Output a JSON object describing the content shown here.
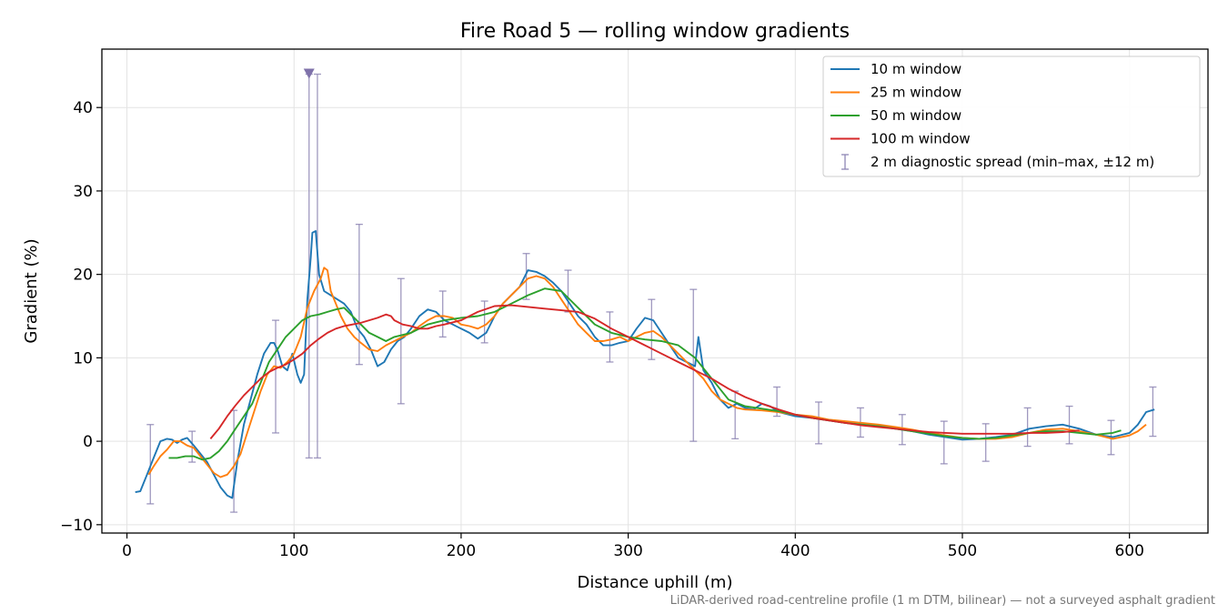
{
  "chart_data": {
    "type": "line",
    "title": "Fire Road 5 — rolling window gradients",
    "xlabel": "Distance uphill (m)",
    "ylabel": "Gradient (%)",
    "footnote": "LiDAR-derived road-centreline profile (1 m DTM, bilinear) — not a surveyed asphalt gradient",
    "xlim": [
      -15,
      647
    ],
    "ylim": [
      -11,
      47
    ],
    "xticks": [
      0,
      100,
      200,
      300,
      400,
      500,
      600
    ],
    "yticks": [
      -10,
      0,
      10,
      20,
      30,
      40
    ],
    "grid": true,
    "legend_position": "top-right",
    "series": [
      {
        "name": "10 m window",
        "color": "#1f77b4",
        "x": [
          5,
          8,
          12,
          16,
          20,
          24,
          27,
          30,
          33,
          36,
          40,
          44,
          48,
          52,
          56,
          60,
          63,
          66,
          70,
          74,
          78,
          82,
          86,
          88,
          90,
          93,
          96,
          99,
          102,
          104,
          106,
          108,
          110,
          111,
          113,
          115,
          118,
          122,
          126,
          130,
          134,
          138,
          142,
          146,
          150,
          154,
          158,
          162,
          166,
          170,
          175,
          180,
          185,
          190,
          195,
          200,
          205,
          210,
          215,
          220,
          225,
          230,
          235,
          240,
          245,
          250,
          255,
          260,
          265,
          270,
          275,
          280,
          285,
          290,
          295,
          300,
          305,
          310,
          315,
          320,
          325,
          330,
          335,
          340,
          342,
          345,
          350,
          355,
          360,
          365,
          370,
          375,
          380,
          385,
          390,
          400,
          410,
          420,
          430,
          440,
          450,
          460,
          470,
          480,
          490,
          500,
          510,
          520,
          530,
          540,
          550,
          560,
          570,
          580,
          590,
          600,
          605,
          610,
          615
        ],
        "y": [
          -6.1,
          -6.0,
          -4.0,
          -2.0,
          0.0,
          0.3,
          0.2,
          -0.2,
          0.2,
          0.4,
          -0.5,
          -1.5,
          -2.5,
          -4.0,
          -5.5,
          -6.5,
          -6.8,
          -2.5,
          2.0,
          5.0,
          8.0,
          10.5,
          11.8,
          11.8,
          11.0,
          9.0,
          8.5,
          10.5,
          8.0,
          7.0,
          8.0,
          17.0,
          22.0,
          25.0,
          25.2,
          20.0,
          18.0,
          17.5,
          17.0,
          16.5,
          15.5,
          13.5,
          12.5,
          11.0,
          9.0,
          9.5,
          11.0,
          12.0,
          12.5,
          13.5,
          15.0,
          15.8,
          15.5,
          14.5,
          14.0,
          13.5,
          13.0,
          12.3,
          13.0,
          15.0,
          16.5,
          17.5,
          18.5,
          20.5,
          20.3,
          19.8,
          19.0,
          18.0,
          16.5,
          15.0,
          14.0,
          12.5,
          11.5,
          11.5,
          11.8,
          12.0,
          13.5,
          14.8,
          14.5,
          13.0,
          11.5,
          10.0,
          9.5,
          9.0,
          12.5,
          8.5,
          7.0,
          5.0,
          4.0,
          4.5,
          4.0,
          3.8,
          4.5,
          4.2,
          3.5,
          3.0,
          2.8,
          2.5,
          2.2,
          2.0,
          1.8,
          1.5,
          1.2,
          0.8,
          0.5,
          0.2,
          0.3,
          0.5,
          0.8,
          1.5,
          1.8,
          2.0,
          1.5,
          0.8,
          0.5,
          1.0,
          2.0,
          3.5,
          3.8
        ]
      },
      {
        "name": "25 m window",
        "color": "#ff7f0e",
        "x": [
          13,
          16,
          20,
          24,
          28,
          32,
          36,
          40,
          44,
          48,
          52,
          56,
          60,
          64,
          68,
          72,
          76,
          80,
          84,
          88,
          92,
          96,
          100,
          104,
          108,
          112,
          116,
          118,
          120,
          122,
          125,
          128,
          132,
          136,
          140,
          145,
          150,
          155,
          160,
          165,
          170,
          175,
          180,
          185,
          190,
          195,
          200,
          205,
          210,
          215,
          220,
          225,
          230,
          235,
          240,
          245,
          250,
          255,
          260,
          265,
          270,
          275,
          280,
          285,
          290,
          295,
          300,
          305,
          310,
          315,
          320,
          325,
          330,
          335,
          340,
          345,
          350,
          355,
          360,
          365,
          370,
          380,
          390,
          400,
          410,
          420,
          430,
          440,
          450,
          460,
          470,
          480,
          490,
          500,
          510,
          520,
          530,
          540,
          550,
          560,
          570,
          580,
          590,
          600,
          605,
          610
        ],
        "y": [
          -4.0,
          -3.0,
          -1.8,
          -1.0,
          0.0,
          0.0,
          -0.5,
          -0.8,
          -1.8,
          -2.8,
          -3.8,
          -4.3,
          -4.0,
          -3.0,
          -1.5,
          1.0,
          3.5,
          6.0,
          8.0,
          9.0,
          8.8,
          9.5,
          10.5,
          12.5,
          16.0,
          18.0,
          19.5,
          20.8,
          20.5,
          18.0,
          16.5,
          15.0,
          13.5,
          12.5,
          11.8,
          11.0,
          10.8,
          11.5,
          12.0,
          12.5,
          13.0,
          13.8,
          14.5,
          15.0,
          15.0,
          14.8,
          14.0,
          13.8,
          13.5,
          14.0,
          15.0,
          16.5,
          17.5,
          18.5,
          19.5,
          19.8,
          19.5,
          18.5,
          17.0,
          15.5,
          14.0,
          13.0,
          12.0,
          12.0,
          12.2,
          12.5,
          12.0,
          12.5,
          13.0,
          13.2,
          12.5,
          11.5,
          10.5,
          9.5,
          8.5,
          7.5,
          6.0,
          5.0,
          4.5,
          4.0,
          3.8,
          3.7,
          3.5,
          3.2,
          3.0,
          2.6,
          2.4,
          2.2,
          2.0,
          1.7,
          1.4,
          1.0,
          0.7,
          0.4,
          0.3,
          0.3,
          0.5,
          1.0,
          1.4,
          1.5,
          1.2,
          0.8,
          0.3,
          0.7,
          1.2,
          2.0
        ]
      },
      {
        "name": "50 m window",
        "color": "#2ca02c",
        "x": [
          25,
          30,
          35,
          40,
          45,
          50,
          55,
          60,
          65,
          70,
          75,
          80,
          85,
          90,
          95,
          100,
          105,
          110,
          115,
          120,
          125,
          130,
          135,
          140,
          145,
          150,
          155,
          160,
          170,
          180,
          190,
          200,
          210,
          220,
          230,
          240,
          250,
          260,
          270,
          280,
          290,
          300,
          310,
          320,
          330,
          340,
          350,
          360,
          370,
          380,
          390,
          400,
          410,
          420,
          430,
          440,
          450,
          460,
          470,
          480,
          490,
          500,
          510,
          520,
          530,
          540,
          550,
          560,
          570,
          580,
          590,
          595
        ],
        "y": [
          -2.0,
          -2.0,
          -1.8,
          -1.8,
          -2.2,
          -2.0,
          -1.2,
          0.0,
          1.5,
          3.0,
          4.5,
          7.0,
          9.5,
          11.0,
          12.5,
          13.5,
          14.5,
          15.0,
          15.2,
          15.5,
          15.8,
          16.0,
          15.0,
          14.0,
          13.0,
          12.5,
          12.0,
          12.5,
          13.0,
          14.0,
          14.5,
          14.8,
          15.0,
          15.5,
          16.5,
          17.5,
          18.3,
          18.0,
          16.0,
          14.0,
          13.0,
          12.5,
          12.2,
          12.0,
          11.5,
          10.0,
          7.5,
          5.0,
          4.2,
          3.9,
          3.6,
          3.2,
          2.8,
          2.5,
          2.2,
          2.0,
          1.8,
          1.5,
          1.2,
          0.9,
          0.6,
          0.4,
          0.3,
          0.4,
          0.7,
          1.0,
          1.2,
          1.2,
          1.0,
          0.8,
          1.0,
          1.3
        ]
      },
      {
        "name": "100 m window",
        "color": "#d62728",
        "x": [
          50,
          55,
          60,
          65,
          70,
          75,
          80,
          85,
          90,
          95,
          100,
          105,
          110,
          115,
          120,
          125,
          130,
          135,
          140,
          145,
          150,
          155,
          158,
          160,
          165,
          170,
          175,
          180,
          185,
          190,
          200,
          210,
          220,
          230,
          240,
          250,
          260,
          270,
          280,
          290,
          300,
          310,
          320,
          330,
          340,
          350,
          360,
          370,
          380,
          390,
          400,
          410,
          420,
          430,
          440,
          450,
          460,
          470,
          480,
          490,
          500,
          510,
          520,
          530,
          540,
          550,
          560,
          570
        ],
        "y": [
          0.3,
          1.5,
          3.0,
          4.3,
          5.5,
          6.5,
          7.5,
          8.3,
          8.8,
          9.2,
          9.8,
          10.5,
          11.5,
          12.3,
          13.0,
          13.5,
          13.8,
          14.0,
          14.2,
          14.5,
          14.8,
          15.2,
          15.0,
          14.5,
          14.0,
          13.8,
          13.5,
          13.5,
          13.8,
          14.0,
          14.5,
          15.5,
          16.2,
          16.3,
          16.1,
          15.9,
          15.7,
          15.5,
          14.7,
          13.5,
          12.5,
          11.5,
          10.5,
          9.5,
          8.5,
          7.5,
          6.3,
          5.3,
          4.5,
          3.8,
          3.2,
          2.8,
          2.5,
          2.2,
          1.9,
          1.7,
          1.5,
          1.3,
          1.1,
          1.0,
          0.9,
          0.9,
          0.9,
          0.9,
          1.0,
          1.0,
          1.1,
          1.3
        ]
      }
    ],
    "errorbars": {
      "name": "2 m diagnostic spread (min–max, ±12 m)",
      "color": "#8f87b5",
      "points": [
        {
          "x": 14,
          "low": -7.5,
          "high": 2.0
        },
        {
          "x": 39,
          "low": -2.5,
          "high": 1.2
        },
        {
          "x": 64,
          "low": -8.5,
          "high": 3.7
        },
        {
          "x": 89,
          "low": 1.0,
          "high": 14.5
        },
        {
          "x": 109,
          "low": -2.0,
          "high": 44.0
        },
        {
          "x": 114,
          "low": -2.0,
          "high": 44.0
        },
        {
          "x": 139,
          "low": 9.2,
          "high": 26.0
        },
        {
          "x": 164,
          "low": 4.5,
          "high": 19.5
        },
        {
          "x": 189,
          "low": 12.5,
          "high": 18.0
        },
        {
          "x": 214,
          "low": 11.8,
          "high": 16.8
        },
        {
          "x": 239,
          "low": 17.0,
          "high": 22.5
        },
        {
          "x": 264,
          "low": 15.5,
          "high": 20.5
        },
        {
          "x": 289,
          "low": 9.5,
          "high": 15.5
        },
        {
          "x": 314,
          "low": 9.8,
          "high": 17.0
        },
        {
          "x": 339,
          "low": 0.0,
          "high": 18.2
        },
        {
          "x": 364,
          "low": 0.3,
          "high": 6.0
        },
        {
          "x": 389,
          "low": 3.0,
          "high": 6.5
        },
        {
          "x": 414,
          "low": -0.3,
          "high": 4.7
        },
        {
          "x": 439,
          "low": 0.5,
          "high": 4.0
        },
        {
          "x": 464,
          "low": -0.4,
          "high": 3.2
        },
        {
          "x": 489,
          "low": -2.7,
          "high": 2.4
        },
        {
          "x": 514,
          "low": -2.4,
          "high": 2.1
        },
        {
          "x": 539,
          "low": -0.6,
          "high": 4.0
        },
        {
          "x": 564,
          "low": -0.3,
          "high": 4.2
        },
        {
          "x": 589,
          "low": -1.6,
          "high": 2.5
        },
        {
          "x": 614,
          "low": 0.6,
          "high": 6.5
        }
      ],
      "clipped_marker": {
        "x": 109,
        "y": 44.0
      }
    }
  }
}
